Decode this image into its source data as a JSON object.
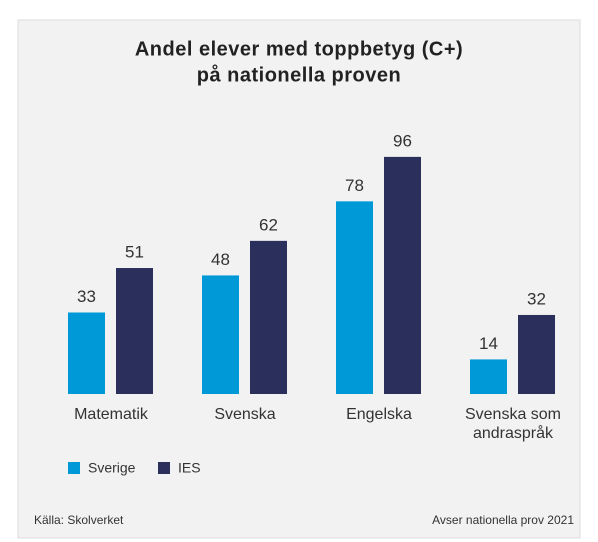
{
  "chart_data": {
    "type": "bar",
    "title": "Andel elever med toppbetyg (C+)",
    "subtitle": "på nationella proven",
    "categories": [
      "Matematik",
      "Svenska",
      "Engelska",
      "Svenska som andraspråk"
    ],
    "series": [
      {
        "name": "Sverige",
        "color": "#0099d8",
        "values": [
          33,
          48,
          78,
          14
        ]
      },
      {
        "name": "IES",
        "color": "#2b2f5c",
        "values": [
          51,
          62,
          96,
          32
        ]
      }
    ],
    "source": "Källa: Skolverket",
    "note": "Avser nationella prov 2021"
  }
}
